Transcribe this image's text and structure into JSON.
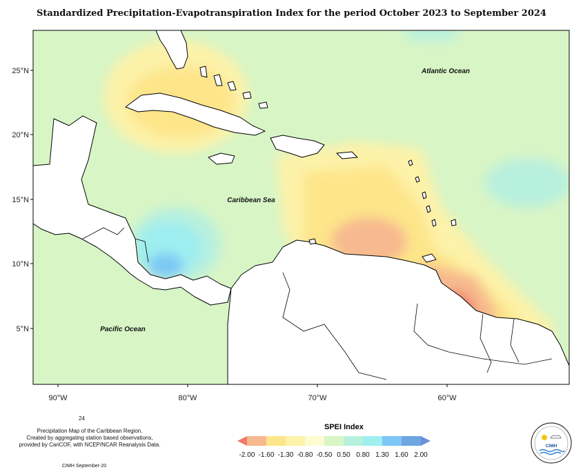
{
  "title": "Standardized Precipitation-Evapotranspiration Index for the period October 2023 to September 2024",
  "map": {
    "lat_labels": [
      "25°N",
      "20°N",
      "15°N",
      "10°N",
      "5°N"
    ],
    "lon_labels": [
      "90°W",
      "80°W",
      "70°W",
      "60°W"
    ],
    "ocean_labels": {
      "atlantic": "Atlantic Ocean",
      "caribbean": "Caribbean Sea",
      "pacific": "Pacific Ocean"
    },
    "background_color": "#d8f5c6",
    "land_color": "#ffffff"
  },
  "legend": {
    "title": "SPEI Index",
    "ticks": [
      "-2.00",
      "-1.60",
      "-1.30",
      "-0.80",
      "-0.50",
      "0.50",
      "0.80",
      "1.30",
      "1.60",
      "2.00"
    ],
    "colors": [
      "#ef7a6a",
      "#f7b98f",
      "#fde58a",
      "#fdf2a9",
      "#fdfbd2",
      "#d8f5c6",
      "#b8f0de",
      "#9feef0",
      "#7cc7f5",
      "#6ea6e2",
      "#6d8fd8"
    ]
  },
  "footnote": {
    "number": "24",
    "line1": "Precipitation Map of the Caribbean Region.",
    "line2": "Created by aggregating station based observations,",
    "line3": "provided by CariCOF, with NCEP/NCAR Reanalysis Data.",
    "credit": "CIMH September-20"
  },
  "logo": {
    "text": "CIMH"
  }
}
